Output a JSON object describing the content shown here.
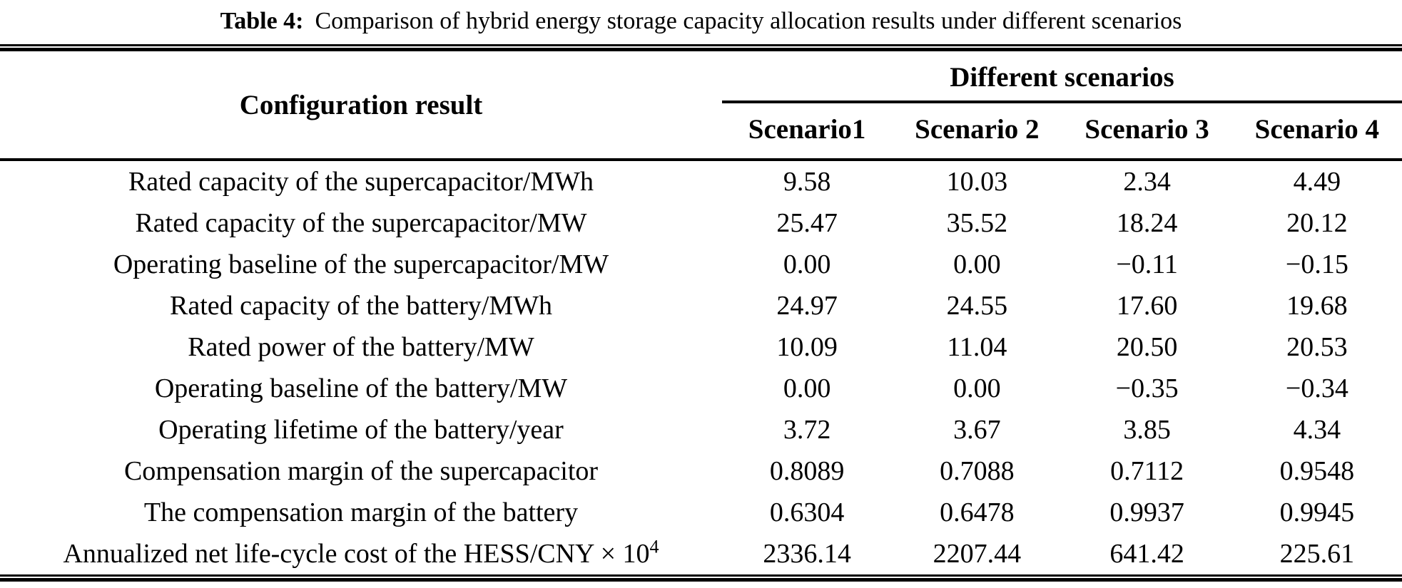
{
  "caption": {
    "prefix": "Table 4:",
    "text": "Comparison of hybrid energy storage capacity allocation results under different scenarios"
  },
  "table": {
    "config_header": "Configuration result",
    "group_header": "Different scenarios",
    "scenario_headers": [
      "Scenario1",
      "Scenario 2",
      "Scenario 3",
      "Scenario 4"
    ],
    "rows": [
      {
        "label": "Rated capacity of the supercapacitor/MWh",
        "values": [
          "9.58",
          "10.03",
          "2.34",
          "4.49"
        ]
      },
      {
        "label": "Rated capacity of the supercapacitor/MW",
        "values": [
          "25.47",
          "35.52",
          "18.24",
          "20.12"
        ]
      },
      {
        "label": "Operating baseline of the supercapacitor/MW",
        "values": [
          "0.00",
          "0.00",
          "−0.11",
          "−0.15"
        ]
      },
      {
        "label": "Rated capacity of the battery/MWh",
        "values": [
          "24.97",
          "24.55",
          "17.60",
          "19.68"
        ]
      },
      {
        "label": "Rated power of the battery/MW",
        "values": [
          "10.09",
          "11.04",
          "20.50",
          "20.53"
        ]
      },
      {
        "label": "Operating baseline of the battery/MW",
        "values": [
          "0.00",
          "0.00",
          "−0.35",
          "−0.34"
        ]
      },
      {
        "label": "Operating lifetime of the battery/year",
        "values": [
          "3.72",
          "3.67",
          "3.85",
          "4.34"
        ]
      },
      {
        "label": "Compensation margin of the supercapacitor",
        "values": [
          "0.8089",
          "0.7088",
          "0.7112",
          "0.9548"
        ]
      },
      {
        "label": "The compensation margin of the battery",
        "values": [
          "0.6304",
          "0.6478",
          "0.9937",
          "0.9945"
        ]
      },
      {
        "label": "Annualized net life-cycle cost of the HESS/CNY × 10",
        "label_sup": "4",
        "values": [
          "2336.14",
          "2207.44",
          "641.42",
          "225.61"
        ]
      }
    ]
  },
  "colors": {
    "text": "#000000",
    "background": "#ffffff",
    "rule": "#000000"
  }
}
